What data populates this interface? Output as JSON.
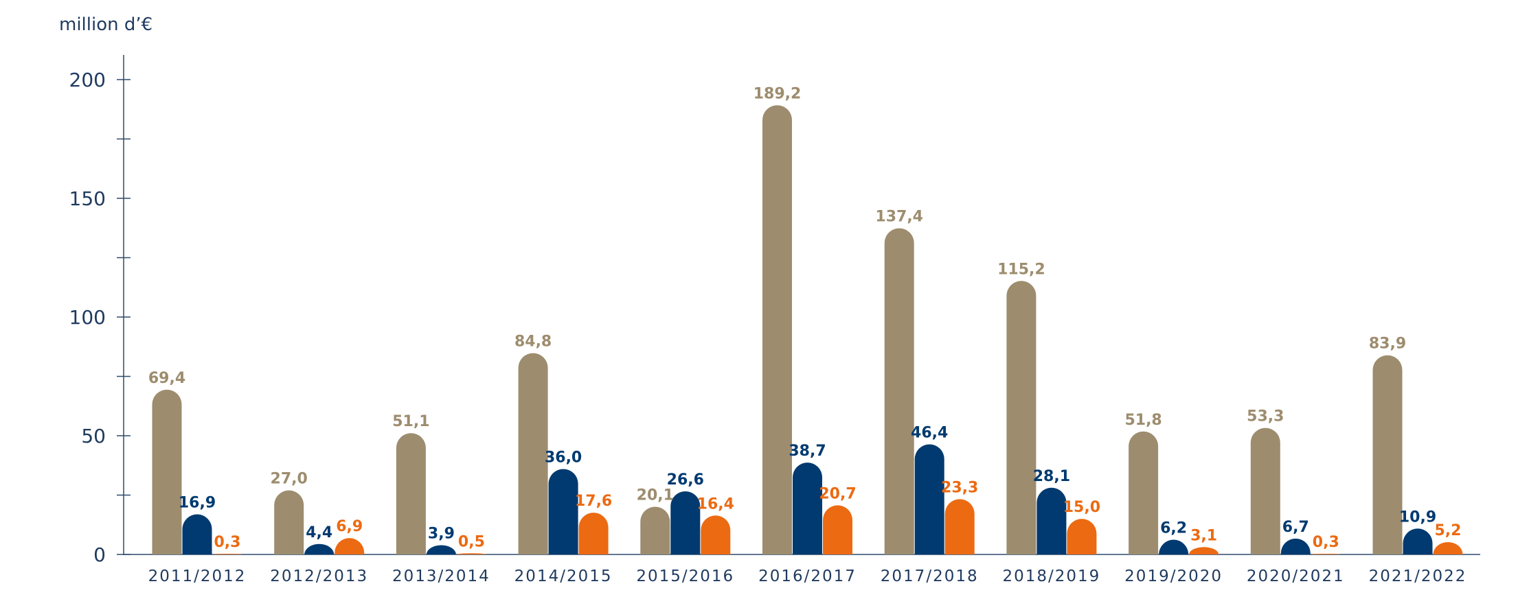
{
  "chart_data": {
    "type": "bar",
    "ylabel": "million d’€",
    "ylim": [
      0,
      210
    ],
    "yticks": [
      0,
      50,
      100,
      150,
      200
    ],
    "yticks_minor": [
      25,
      75,
      125,
      175
    ],
    "categories": [
      "2011/2012",
      "2012/2013",
      "2013/2014",
      "2014/2015",
      "2015/2016",
      "2016/2017",
      "2017/2018",
      "2018/2019",
      "2019/2020",
      "2020/2021",
      "2021/2022"
    ],
    "series": [
      {
        "color": "#9d8c6e",
        "values": [
          69.4,
          27.0,
          51.1,
          84.8,
          20.1,
          189.2,
          137.4,
          115.2,
          51.8,
          53.3,
          83.9
        ],
        "labels": [
          "69,4",
          "27,0",
          "51,1",
          "84,8",
          "20,1",
          "189,2",
          "137,4",
          "115,2",
          "51,8",
          "53,3",
          "83,9"
        ]
      },
      {
        "color": "#003a70",
        "values": [
          16.9,
          4.4,
          3.9,
          36.0,
          26.6,
          38.7,
          46.4,
          28.1,
          6.2,
          6.7,
          10.9
        ],
        "labels": [
          "16,9",
          "4,4",
          "3,9",
          "36,0",
          "26,6",
          "38,7",
          "46,4",
          "28,1",
          "6,2",
          "6,7",
          "10,9"
        ]
      },
      {
        "color": "#ec6a12",
        "values": [
          0.3,
          6.9,
          0.5,
          17.6,
          16.4,
          20.7,
          23.3,
          15.0,
          3.1,
          0.3,
          5.2
        ],
        "labels": [
          "0,3",
          "6,9",
          "0,5",
          "17,6",
          "16,4",
          "20,7",
          "23,3",
          "15,0",
          "3,1",
          "0,3",
          "5,2"
        ]
      }
    ],
    "axis_color": "#2d4a6b",
    "grid": false,
    "legend": "none"
  }
}
